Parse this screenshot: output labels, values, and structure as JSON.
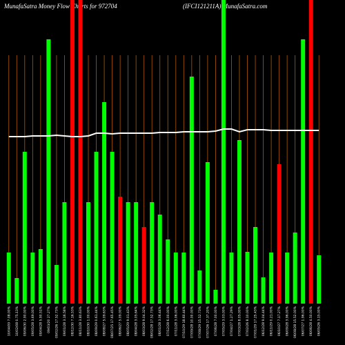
{
  "chart_data": {
    "type": "bar",
    "title": "MunafaSatra  Money Flow Charts for 972704",
    "subtitle": "(IFCI121211A) MunafaSatra.com",
    "categories": [
      "10/04/09 7.08.00%",
      "10/02/08 0.75.13%",
      "09/06/30 2.90.00%",
      "09/05/28 3.69.00%",
      "09/04/28 5.90.51%",
      "09/03/20 27.27%",
      "09/02/26 17.52.73%",
      "09/01/28 3.16.58%",
      "08/12/30 7.16.53%",
      "08/11/28 3.80.63%",
      "08/10/30 1.00.00%",
      "08/09/29 0.61.44%",
      "08/08/27 5.09.63%",
      "08/07/25 17.65.45%",
      "08/06/27 5.09.00%",
      "08/05/29 9.01.43%",
      "08/04/28 3.05.64%",
      "08/03/28 9.04.32%",
      "08/02/28 17.52.73%",
      "08/01/28 3.06.44%",
      "07/12/28 6.00.00%",
      "07/11/28 3.06.00%",
      "07/10/29 18.60.44%",
      "07/09/28 10.00.00%",
      "07/08/29 15.52.73%",
      "07/07/26 17.37.20%",
      "07/06/28 7.00.00%",
      "07/05/29 3.03.00%",
      "07/04/27 1.27.29%",
      "07/03/28 8.05.00%",
      "07/02/26 8.10.00%",
      "07/01/29 17.25.43%",
      "06/12/28 9.04.44%",
      "06/11/29 0.21.00%",
      "06/10/27 7.17.27%",
      "06/09/28 3.96.00%",
      "06/08/28 15.52.00%",
      "06/07/27 1.96.00%",
      "06/06/28 4.50.00%",
      "06/05/26 3.15.00%"
    ],
    "values": [
      74,
      37,
      220,
      74,
      79,
      383,
      56,
      147,
      460,
      460,
      147,
      220,
      292,
      220,
      155,
      147,
      147,
      111,
      147,
      129,
      93,
      74,
      74,
      329,
      48,
      205,
      20,
      460,
      74,
      237,
      75,
      111,
      38,
      74,
      202,
      74,
      103,
      383,
      460,
      70
    ],
    "colors": [
      "#00ff00",
      "#00ff00",
      "#00ff00",
      "#00ff00",
      "#00ff00",
      "#00ff00",
      "#00ff00",
      "#00ff00",
      "#ff0000",
      "#ff0000",
      "#00ff00",
      "#00ff00",
      "#00ff00",
      "#00ff00",
      "#ff0000",
      "#00ff00",
      "#00ff00",
      "#ff0000",
      "#00ff00",
      "#00ff00",
      "#00ff00",
      "#00ff00",
      "#00ff00",
      "#00ff00",
      "#00ff00",
      "#00ff00",
      "#00ff00",
      "#00ff00",
      "#00ff00",
      "#00ff00",
      "#00ff00",
      "#00ff00",
      "#00ff00",
      "#00ff00",
      "#ff0000",
      "#00ff00",
      "#00ff00",
      "#00ff00",
      "#ff0000",
      "#00ff00"
    ],
    "line": {
      "color": "#ffffff",
      "values": [
        242,
        242,
        242,
        243,
        243,
        243,
        244,
        243,
        242,
        242,
        243,
        247,
        247,
        246,
        247,
        247,
        247,
        247,
        247,
        248,
        248,
        248,
        249,
        249,
        249,
        249,
        250,
        253,
        253,
        249,
        252,
        252,
        252,
        251,
        251,
        251,
        251,
        251,
        251,
        251
      ]
    },
    "grid_color": "#b35a00",
    "ylim": [
      0,
      440
    ]
  }
}
